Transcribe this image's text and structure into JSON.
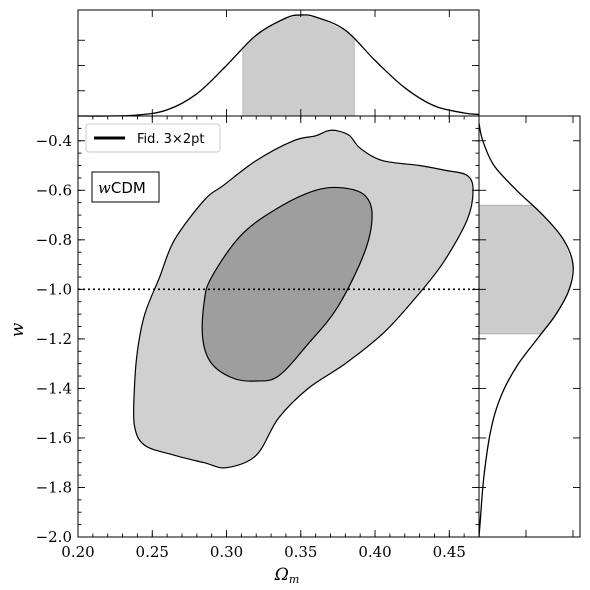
{
  "chart_data": {
    "type": "contour",
    "xlabel": "Ω",
    "xlabel_sub": "m",
    "ylabel": "w",
    "xlim": [
      0.2,
      0.47
    ],
    "ylim": [
      -2.0,
      -0.3
    ],
    "x_ticks": [
      0.2,
      0.25,
      0.3,
      0.35,
      0.4,
      0.45
    ],
    "x_tick_labels": [
      "0.20",
      "0.25",
      "0.30",
      "0.35",
      "0.40",
      "0.45"
    ],
    "y_ticks": [
      -0.4,
      -0.6,
      -0.8,
      -1.0,
      -1.2,
      -1.4,
      -1.6,
      -1.8,
      -2.0
    ],
    "y_tick_labels": [
      "−0.4",
      "−0.6",
      "−0.8",
      "−1.0",
      "−1.2",
      "−1.4",
      "−1.6",
      "−1.8",
      "−2.0"
    ],
    "legend": {
      "label": "Fid. 3×2pt",
      "placement": "upper-left"
    },
    "model_tag": {
      "prefix": "w",
      "suffix": "CDM"
    },
    "reference_line": {
      "axis": "y",
      "value": -1.0,
      "style": "dotted"
    },
    "outer_contour": [
      [
        0.285,
        -1.7
      ],
      [
        0.3,
        -1.72
      ],
      [
        0.32,
        -1.67
      ],
      [
        0.335,
        -1.52
      ],
      [
        0.355,
        -1.4
      ],
      [
        0.38,
        -1.3
      ],
      [
        0.405,
        -1.18
      ],
      [
        0.425,
        -1.05
      ],
      [
        0.445,
        -0.9
      ],
      [
        0.462,
        -0.72
      ],
      [
        0.466,
        -0.6
      ],
      [
        0.462,
        -0.54
      ],
      [
        0.448,
        -0.52
      ],
      [
        0.43,
        -0.5
      ],
      [
        0.405,
        -0.48
      ],
      [
        0.39,
        -0.43
      ],
      [
        0.383,
        -0.38
      ],
      [
        0.375,
        -0.36
      ],
      [
        0.368,
        -0.36
      ],
      [
        0.36,
        -0.38
      ],
      [
        0.345,
        -0.4
      ],
      [
        0.32,
        -0.48
      ],
      [
        0.298,
        -0.58
      ],
      [
        0.285,
        -0.64
      ],
      [
        0.265,
        -0.8
      ],
      [
        0.255,
        -0.95
      ],
      [
        0.245,
        -1.1
      ],
      [
        0.24,
        -1.25
      ],
      [
        0.238,
        -1.4
      ],
      [
        0.238,
        -1.55
      ],
      [
        0.245,
        -1.63
      ],
      [
        0.265,
        -1.67
      ]
    ],
    "inner_contour": [
      [
        0.32,
        -1.37
      ],
      [
        0.335,
        -1.35
      ],
      [
        0.355,
        -1.22
      ],
      [
        0.375,
        -1.07
      ],
      [
        0.393,
        -0.85
      ],
      [
        0.398,
        -0.7
      ],
      [
        0.393,
        -0.62
      ],
      [
        0.378,
        -0.59
      ],
      [
        0.36,
        -0.6
      ],
      [
        0.335,
        -0.67
      ],
      [
        0.31,
        -0.78
      ],
      [
        0.29,
        -0.95
      ],
      [
        0.285,
        -1.05
      ],
      [
        0.284,
        -1.2
      ],
      [
        0.29,
        -1.3
      ],
      [
        0.305,
        -1.36
      ]
    ],
    "marginal_x": {
      "x": [
        0.2,
        0.22,
        0.24,
        0.26,
        0.28,
        0.3,
        0.32,
        0.34,
        0.35,
        0.36,
        0.38,
        0.4,
        0.42,
        0.44,
        0.46,
        0.47
      ],
      "density": [
        0.0,
        0.0,
        0.01,
        0.06,
        0.22,
        0.5,
        0.8,
        0.97,
        1.0,
        0.98,
        0.85,
        0.55,
        0.28,
        0.1,
        0.03,
        0.015
      ],
      "interval": [
        0.311,
        0.386
      ]
    },
    "marginal_y": {
      "y": [
        -0.33,
        -0.4,
        -0.5,
        -0.6,
        -0.7,
        -0.8,
        -0.9,
        -1.0,
        -1.1,
        -1.2,
        -1.3,
        -1.4,
        -1.5,
        -1.6,
        -1.7,
        -1.8,
        -1.9,
        -2.0
      ],
      "density": [
        0.0,
        0.04,
        0.16,
        0.4,
        0.68,
        0.9,
        1.0,
        0.96,
        0.82,
        0.62,
        0.42,
        0.27,
        0.17,
        0.11,
        0.07,
        0.04,
        0.02,
        0.0
      ],
      "interval": [
        -1.18,
        -0.66
      ]
    }
  }
}
